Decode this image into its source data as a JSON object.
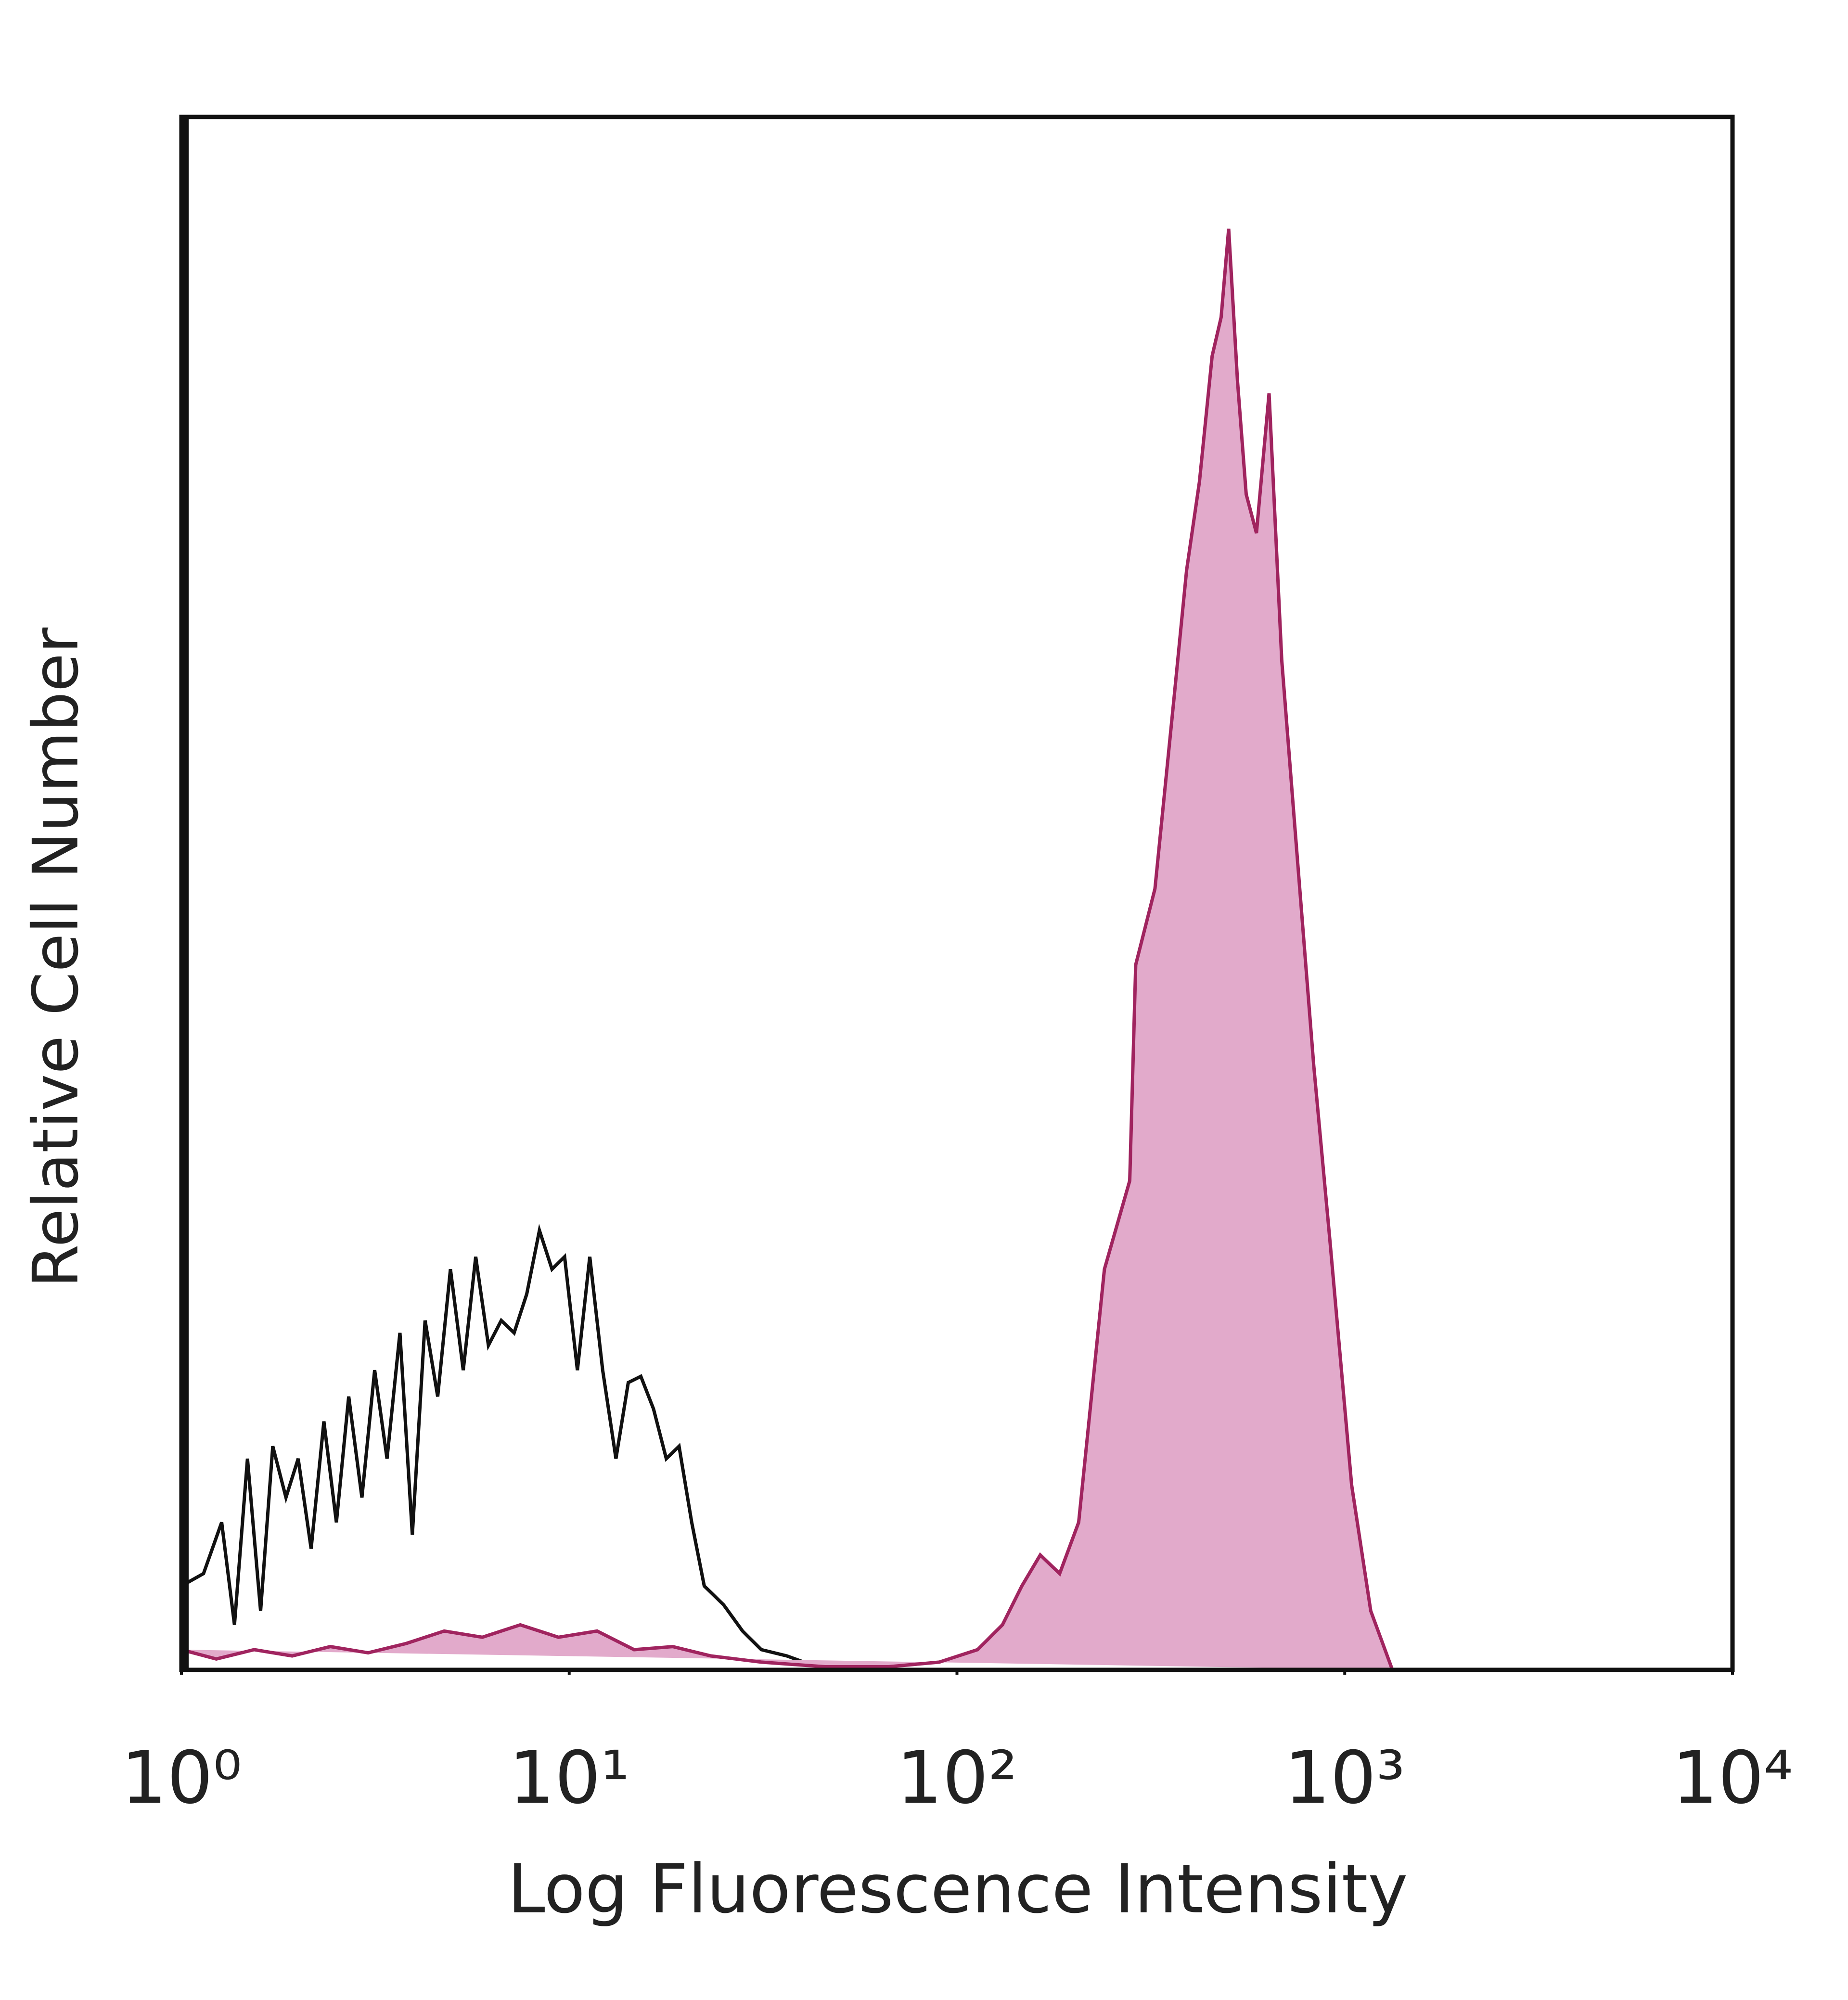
{
  "chart_data": {
    "type": "line",
    "xlabel": "Log Fluorescence Intensity",
    "ylabel": "Relative Cell Number",
    "xscale": "log",
    "xlim": [
      1,
      10000
    ],
    "xticks": [
      {
        "value": 1,
        "label": "10⁰"
      },
      {
        "value": 10,
        "label": "10¹"
      },
      {
        "value": 100,
        "label": "10²"
      },
      {
        "value": 1000,
        "label": "10³"
      },
      {
        "value": 10000,
        "label": "10⁴"
      }
    ],
    "ylim": [
      0,
      100
    ],
    "series": [
      {
        "color": "#111111",
        "x": [
          1,
          1.14,
          1.27,
          1.37,
          1.48,
          1.6,
          1.72,
          1.86,
          2.0,
          2.16,
          2.33,
          2.51,
          2.7,
          2.92,
          3.15,
          3.39,
          3.66,
          3.94,
          4.25,
          4.58,
          4.94,
          5.33,
          5.74,
          6.19,
          6.68,
          7.21,
          7.77,
          8.38,
          9.03,
          9.73,
          10.5,
          11.3,
          12.2,
          13.2,
          14.2,
          15.3,
          16.5,
          17.8,
          19.2,
          20.7,
          22.3,
          25.0,
          28.0,
          31.3,
          36.4,
          42.4,
          53.3
        ],
        "values": [
          5.4,
          6.2,
          9.5,
          2.9,
          13.6,
          3.8,
          14.4,
          11.1,
          13.6,
          7.8,
          16.0,
          9.5,
          17.6,
          11.1,
          19.3,
          13.6,
          21.7,
          8.7,
          22.5,
          17.6,
          25.8,
          19.3,
          26.6,
          20.9,
          22.5,
          21.7,
          24.2,
          28.3,
          25.8,
          26.6,
          19.3,
          26.6,
          19.3,
          13.6,
          18.5,
          18.9,
          16.8,
          13.6,
          14.4,
          9.5,
          5.4,
          4.2,
          2.5,
          1.3,
          0.9,
          0.3,
          0
        ]
      },
      {
        "color": "#a0245f",
        "fill": "#e2aacb",
        "x": [
          1,
          1.23,
          1.54,
          1.93,
          2.42,
          3.03,
          3.8,
          4.76,
          5.97,
          7.48,
          9.38,
          11.8,
          14.7,
          18.5,
          23.2,
          31.3,
          45.7,
          66.6,
          90,
          113,
          131,
          147,
          164,
          184,
          206,
          240,
          279,
          289,
          324,
          363,
          391,
          422,
          455,
          480,
          502,
          529,
          557,
          592,
          638,
          688,
          743,
          832,
          917,
          1042,
          1167,
          1327
        ],
        "values": [
          1.3,
          0.7,
          1.3,
          0.9,
          1.5,
          1.1,
          1.7,
          2.5,
          2.1,
          2.9,
          2.1,
          2.5,
          1.3,
          1.5,
          0.9,
          0.5,
          0.2,
          0.2,
          0.5,
          1.3,
          2.9,
          5.4,
          7.4,
          6.2,
          9.5,
          25.8,
          31.5,
          45.4,
          50.3,
          62.6,
          70.8,
          76.5,
          84.6,
          87.1,
          92.8,
          83.0,
          75.7,
          73.2,
          82.2,
          65.0,
          54.4,
          38.9,
          27.5,
          11.9,
          3.8,
          0
        ]
      }
    ]
  }
}
